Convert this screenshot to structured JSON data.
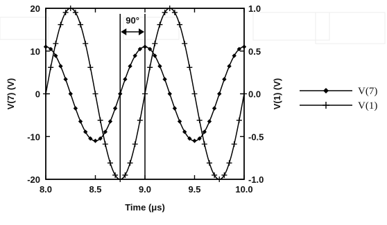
{
  "chart_data": {
    "type": "line",
    "title": "",
    "xlabel": "Time (μs)",
    "ylabel": "V(7)  (V)",
    "y2label": "V(1)  (V)",
    "xlim": [
      8.0,
      10.0
    ],
    "ylim": [
      -20,
      20
    ],
    "y2lim": [
      -1.0,
      1.0
    ],
    "x_ticks": [
      "8.0",
      "8.5",
      "9.0",
      "9.5",
      "10.0"
    ],
    "y_ticks": [
      "20",
      "10",
      "0",
      "-10",
      "-20"
    ],
    "y2_ticks": [
      "1.0",
      "0.5",
      "0.0",
      "-0.5",
      "-1.0"
    ],
    "grid": false,
    "legend_position": "right",
    "annotation": {
      "text": "90°",
      "from_x": 8.75,
      "to_x": 9.0
    },
    "series": [
      {
        "name": "V(7)",
        "marker": "diamond",
        "axis": "left",
        "amplitude": 11,
        "period": 1.0,
        "peak_at": 9.0,
        "x": [
          8.0,
          8.25,
          8.5,
          8.75,
          9.0,
          9.25,
          9.5,
          9.75,
          10.0
        ],
        "y": [
          11,
          0,
          -11,
          0,
          11,
          0,
          -11,
          0,
          11
        ]
      },
      {
        "name": "V(1)",
        "marker": "plus",
        "axis": "right",
        "amplitude": 1.0,
        "period": 1.0,
        "peak_at": 8.25,
        "x": [
          8.0,
          8.25,
          8.5,
          8.75,
          9.0,
          9.25,
          9.5,
          9.75,
          10.0
        ],
        "y": [
          0.0,
          1.0,
          0.0,
          -1.0,
          0.0,
          1.0,
          0.0,
          -1.0,
          0.0
        ]
      }
    ]
  }
}
